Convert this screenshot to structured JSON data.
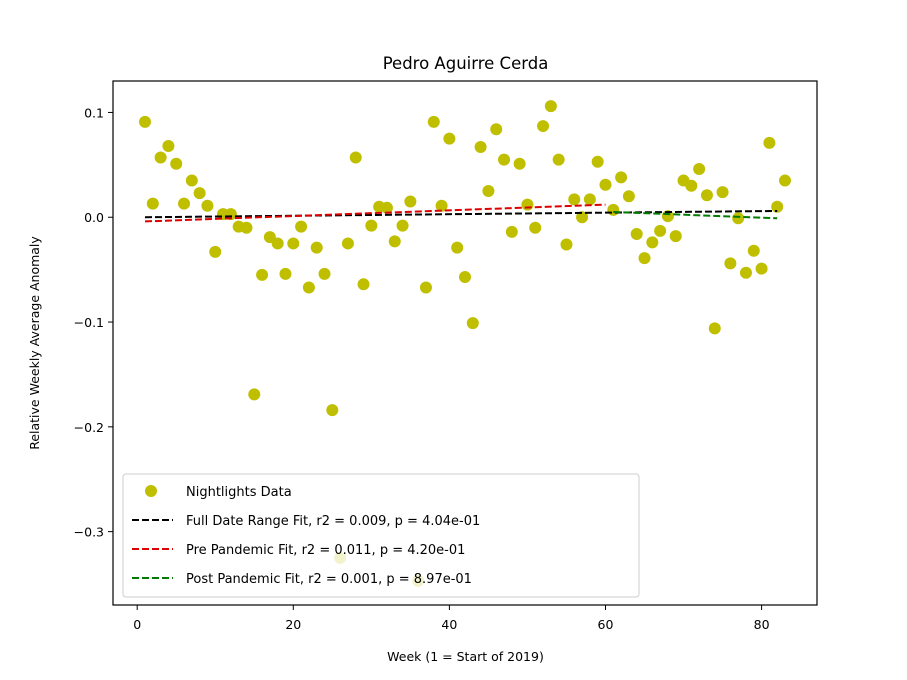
{
  "chart_data": {
    "type": "scatter",
    "title": "Pedro Aguirre Cerda",
    "xlabel": "Week (1 = Start of 2019)",
    "ylabel": "Relative Weekly Average Anomaly",
    "xlim": [
      -3.1,
      87.1
    ],
    "ylim": [
      -0.37,
      0.13
    ],
    "x_ticks": [
      0,
      20,
      40,
      60,
      80
    ],
    "y_ticks": [
      -0.3,
      -0.2,
      -0.1,
      0.0,
      0.1
    ],
    "x_tick_labels": [
      "0",
      "20",
      "40",
      "60",
      "80"
    ],
    "y_tick_labels": [
      "−0.3",
      "−0.2",
      "−0.1",
      "0.0",
      "0.1"
    ],
    "grid": false,
    "legend_position": "lower-left",
    "series": [
      {
        "name": "Nightlights Data",
        "kind": "points",
        "color": "#bfbf00",
        "x": [
          1,
          2,
          3,
          4,
          5,
          6,
          7,
          8,
          9,
          10,
          11,
          12,
          13,
          14,
          15,
          16,
          17,
          18,
          19,
          20,
          21,
          22,
          23,
          24,
          25,
          26,
          27,
          28,
          29,
          30,
          31,
          32,
          33,
          34,
          35,
          36,
          37,
          38,
          39,
          40,
          41,
          42,
          43,
          44,
          45,
          46,
          47,
          48,
          49,
          50,
          51,
          52,
          53,
          54,
          55,
          56,
          57,
          58,
          59,
          60,
          61,
          62,
          63,
          64,
          65,
          66,
          67,
          68,
          69,
          70,
          71,
          72,
          73,
          74,
          75,
          76,
          77,
          78,
          79,
          80,
          81,
          82,
          83
        ],
        "y": [
          0.091,
          0.013,
          0.057,
          0.068,
          0.051,
          0.013,
          0.035,
          0.023,
          0.011,
          -0.033,
          0.003,
          0.003,
          -0.009,
          -0.01,
          -0.169,
          -0.055,
          -0.019,
          -0.025,
          -0.054,
          -0.025,
          -0.009,
          -0.067,
          -0.029,
          -0.054,
          -0.184,
          -0.325,
          -0.025,
          0.057,
          -0.064,
          -0.008,
          0.01,
          0.009,
          -0.023,
          -0.008,
          0.015,
          -0.347,
          -0.067,
          0.091,
          0.011,
          0.075,
          -0.029,
          -0.057,
          -0.101,
          0.067,
          0.025,
          0.084,
          0.055,
          -0.014,
          0.051,
          0.012,
          -0.01,
          0.087,
          0.106,
          0.055,
          -0.026,
          0.017,
          0.0,
          0.017,
          0.053,
          0.031,
          0.007,
          0.038,
          0.02,
          -0.016,
          -0.039,
          -0.024,
          -0.013,
          0.001,
          -0.018,
          0.035,
          0.03,
          0.046,
          0.021,
          -0.106,
          0.024,
          -0.044,
          -0.001,
          -0.053,
          -0.032,
          -0.049,
          0.071,
          0.01,
          0.035
        ]
      },
      {
        "name": "Full Date Range Fit, r2 = 0.009, p = 4.04e-01",
        "kind": "dashed-line",
        "color": "#000000",
        "x": [
          1,
          82
        ],
        "y": [
          0.0,
          0.006
        ]
      },
      {
        "name": "Pre Pandemic Fit, r2 = 0.011, p = 4.20e-01",
        "kind": "dashed-line",
        "color": "#dd0000",
        "x": [
          1,
          60
        ],
        "y": [
          -0.004,
          0.012
        ]
      },
      {
        "name": "Post Pandemic Fit, r2 = 0.001, p = 8.97e-01",
        "kind": "dashed-line",
        "color": "#007a00",
        "x": [
          61,
          82
        ],
        "y": [
          0.005,
          -0.001
        ]
      }
    ]
  }
}
